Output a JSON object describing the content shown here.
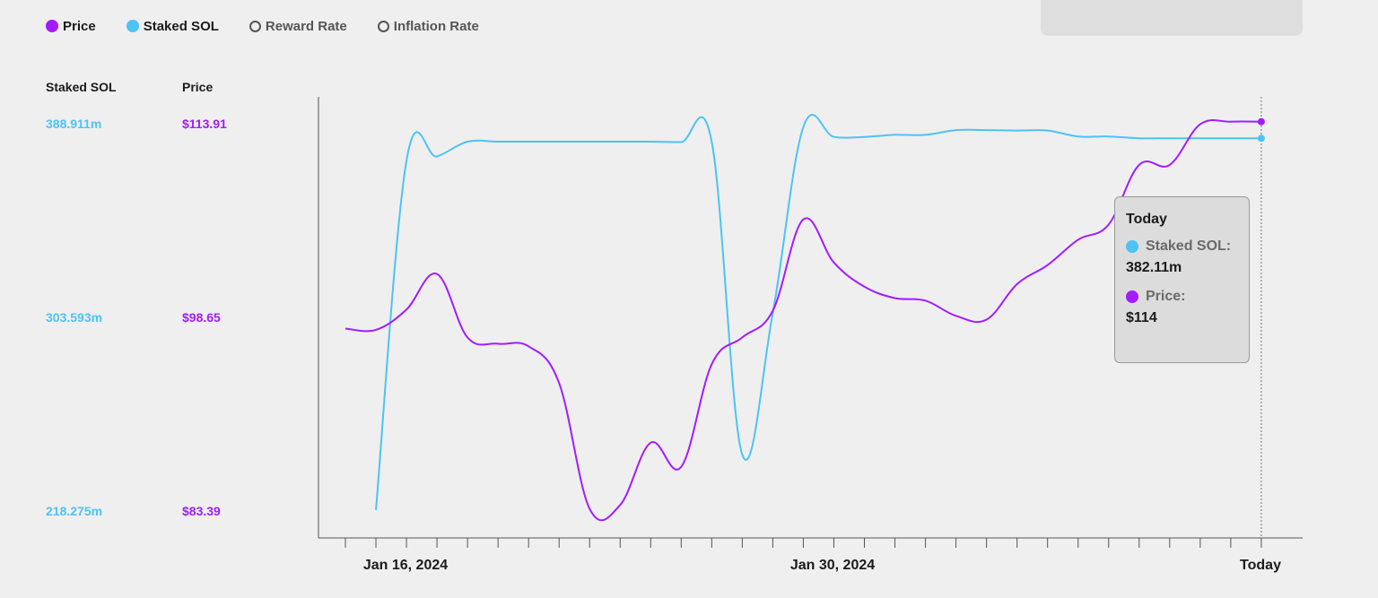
{
  "legend": {
    "items": [
      {
        "label": "Price",
        "state": "active",
        "color": "#a21cff"
      },
      {
        "label": "Staked SOL",
        "state": "active",
        "color": "#4dc3f5"
      },
      {
        "label": "Reward Rate",
        "state": "inactive"
      },
      {
        "label": "Inflation Rate",
        "state": "inactive"
      }
    ]
  },
  "colors": {
    "price": "#a21cff",
    "staked": "#4dc3f5",
    "background": "#efefef"
  },
  "tooltip": {
    "title": "Today",
    "staked_label": "Staked SOL:",
    "staked_value": "382.11m",
    "price_label": "Price:",
    "price_value": "$114"
  },
  "chart_data": {
    "type": "line",
    "x_labels": [
      "Jan 16, 2024",
      "Jan 30, 2024",
      "Today"
    ],
    "y_left": {
      "title": "Staked SOL",
      "ticks": [
        "388.911m",
        "303.593m",
        "218.275m"
      ],
      "range": [
        218.275,
        388.911
      ],
      "unit": "m"
    },
    "y_right": {
      "title": "Price",
      "ticks": [
        "$113.91",
        "$98.65",
        "$83.39"
      ],
      "range": [
        83.39,
        113.91
      ]
    },
    "x": [
      15,
      16,
      17,
      18,
      19,
      20,
      21,
      22,
      23,
      24,
      25,
      26,
      27,
      28,
      29,
      30,
      31,
      32,
      33,
      34,
      35,
      36,
      37,
      38,
      39,
      40,
      41,
      42,
      43,
      44,
      45
    ],
    "series": [
      {
        "name": "Staked SOL",
        "color": "#4dc3f5",
        "values": [
          null,
          218.3,
          372.2,
          374.1,
          380.6,
          380.6,
          380.6,
          380.6,
          380.6,
          380.6,
          380.6,
          380.4,
          380.4,
          242.7,
          305.2,
          387.1,
          382.7,
          382.7,
          383.6,
          383.6,
          385.7,
          385.7,
          385.5,
          385.5,
          382.9,
          382.9,
          382.1,
          382.1,
          382.1,
          382.1,
          382.1
        ]
      },
      {
        "name": "Price",
        "color": "#a21cff",
        "values": [
          97.7,
          97.6,
          99.2,
          102.0,
          97.0,
          96.5,
          96.3,
          93.4,
          83.5,
          83.8,
          88.7,
          86.8,
          94.9,
          97.0,
          99.1,
          106.3,
          102.9,
          101.0,
          100.1,
          99.9,
          98.7,
          98.4,
          101.2,
          102.7,
          104.7,
          105.9,
          110.6,
          110.6,
          113.8,
          114.0,
          114.0
        ]
      }
    ],
    "grid": false,
    "hover_marker": "Today"
  }
}
